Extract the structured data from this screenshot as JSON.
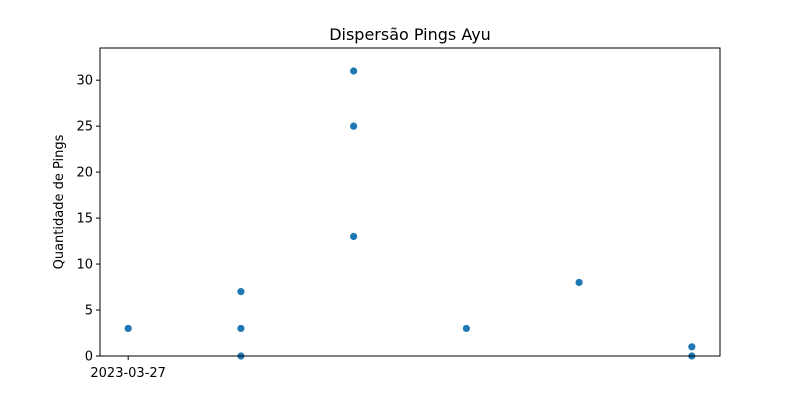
{
  "chart_data": {
    "type": "scatter",
    "title": "Dispersão Pings Ayu",
    "xlabel": "",
    "ylabel": "Quantidade de Pings",
    "x_tick_labels": [
      "2023-03-27"
    ],
    "y_ticks": [
      0,
      5,
      10,
      15,
      20,
      25,
      30
    ],
    "ylim": [
      0,
      33.5
    ],
    "grid": false,
    "legend": "none",
    "marker_color": "#1f77b4",
    "points": [
      {
        "x": "2023-03-27",
        "y": 3
      },
      {
        "x": "2023-03-28",
        "y": 7
      },
      {
        "x": "2023-03-28",
        "y": 3
      },
      {
        "x": "2023-03-28",
        "y": 0
      },
      {
        "x": "2023-03-29",
        "y": 31
      },
      {
        "x": "2023-03-29",
        "y": 25
      },
      {
        "x": "2023-03-29",
        "y": 13
      },
      {
        "x": "2023-03-30",
        "y": 3
      },
      {
        "x": "2023-03-31",
        "y": 8
      },
      {
        "x": "2023-04-01",
        "y": 1
      },
      {
        "x": "2023-04-01",
        "y": 0
      }
    ]
  }
}
